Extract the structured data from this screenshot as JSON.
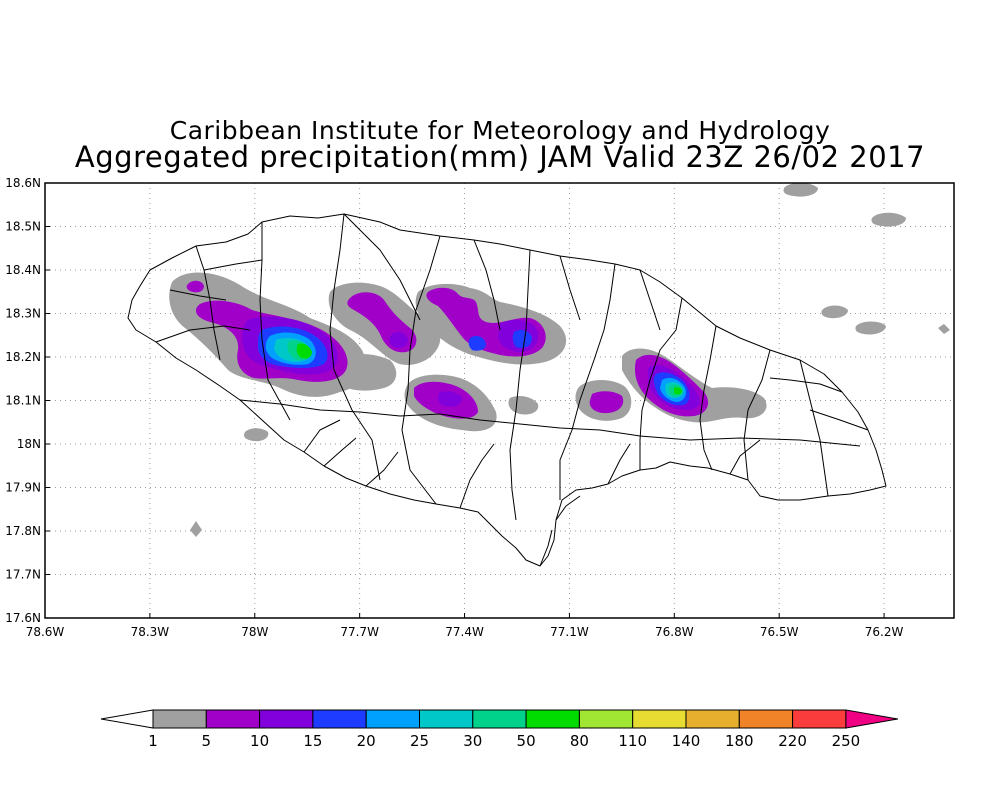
{
  "titles": {
    "line1": "Caribbean Institute for Meteorology and Hydrology",
    "line2": "Aggregated precipitation(mm) JAM Valid 23Z 26/02 2017"
  },
  "map": {
    "lon_ticks": [
      "78.6W",
      "78.3W",
      "78W",
      "77.7W",
      "77.4W",
      "77.1W",
      "76.8W",
      "76.5W",
      "76.2W"
    ],
    "lat_ticks": [
      "18.6N",
      "18.5N",
      "18.4N",
      "18.3N",
      "18.2N",
      "18.1N",
      "18N",
      "17.9N",
      "17.8N",
      "17.7N",
      "17.6N"
    ],
    "lon_range": [
      -78.6,
      -76.0
    ],
    "lat_range": [
      17.6,
      18.6
    ],
    "grid": "dotted"
  },
  "colorbar": {
    "labels": [
      "1",
      "5",
      "10",
      "15",
      "20",
      "25",
      "30",
      "50",
      "80",
      "110",
      "140",
      "180",
      "220",
      "250"
    ],
    "colors": [
      "#a0a0a0",
      "#a000c8",
      "#8200dc",
      "#1e3cff",
      "#00a0ff",
      "#00c8c8",
      "#00d28c",
      "#00dc00",
      "#a0e632",
      "#e6dc32",
      "#e6af2d",
      "#f08228",
      "#fa3c3c",
      "#f00082"
    ]
  }
}
